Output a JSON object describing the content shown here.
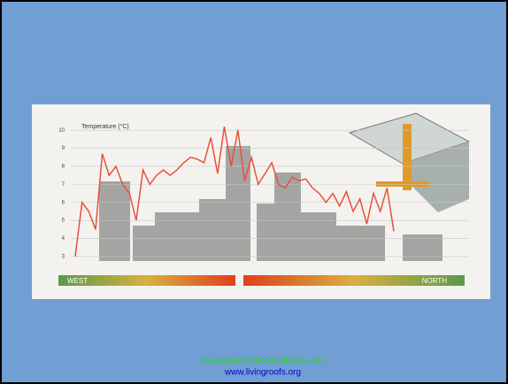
{
  "chart_data": {
    "type": "line",
    "title": "Temperature (°C)",
    "values": [
      3,
      6,
      5.5,
      4.5,
      8.7,
      7.5,
      8,
      7,
      6.5,
      5,
      7.8,
      7,
      7.5,
      7.8,
      7.5,
      7.8,
      8.2,
      8.5,
      8.4,
      8.2,
      9.6,
      7.6,
      10.2,
      8,
      10,
      7.2,
      8.5,
      7,
      7.6,
      8.2,
      7,
      6.8,
      7.4,
      7.2,
      7.3,
      6.8,
      6.5,
      6,
      6.5,
      5.8,
      6.6,
      5.5,
      6.2,
      4.8,
      6.5,
      5.5,
      6.8,
      4.4
    ],
    "color": "#e8503a",
    "ylim": [
      2.8,
      10.5
    ],
    "yticks": [
      3,
      4,
      5,
      6,
      7,
      8,
      9,
      10
    ],
    "grid": true,
    "direction_labels": [
      "WEST",
      "NORTH"
    ],
    "footer": [
      "www.greenroofconsultancy.com",
      "www.livingroofs.org"
    ]
  }
}
